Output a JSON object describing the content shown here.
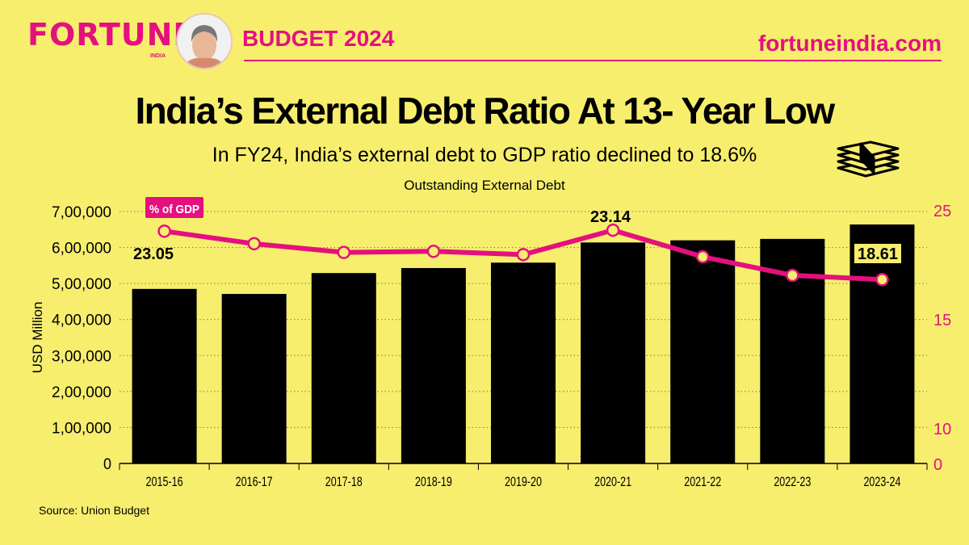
{
  "header": {
    "brand": "FORTUNE",
    "brand_sub": "INDIA",
    "section": "BUDGET 2024",
    "site": "fortuneindia.com"
  },
  "title": "India’s External Debt Ratio At 13- Year Low",
  "subtitle": "In FY24, India’s external debt to GDP ratio declined to 18.6%",
  "source": "Source: Union Budget",
  "colors": {
    "background": "#F7EE6E",
    "accent": "#E4107E",
    "bars": "#000000"
  },
  "chart_data": {
    "type": "bar",
    "title": "Outstanding External Debt",
    "categories": [
      "2015-16",
      "2016-17",
      "2017-18",
      "2018-19",
      "2019-20",
      "2020-21",
      "2021-22",
      "2022-23",
      "2023-24"
    ],
    "series": [
      {
        "values": [
          485000,
          471000,
          529000,
          543000,
          558000,
          614000,
          620000,
          624000,
          664000
        ]
      },
      {
        "name": "% of GDP",
        "values": [
          23.05,
          21.9,
          21.1,
          21.2,
          20.9,
          23.14,
          20.7,
          19.0,
          18.61
        ]
      }
    ],
    "ylabel_left": "USD Million",
    "ylim_left": [
      0,
      700000
    ],
    "yticks_left": [
      "0",
      "1,00,000",
      "2,00,000",
      "3,00,000",
      "4,00,000",
      "5,00,000",
      "6,00,000",
      "7,00,000"
    ],
    "yticks_right": [
      "0",
      "10",
      "15",
      "25"
    ],
    "data_labels": [
      "23.05",
      "23.14",
      "18.61"
    ],
    "grid": "horizontal dotted"
  }
}
